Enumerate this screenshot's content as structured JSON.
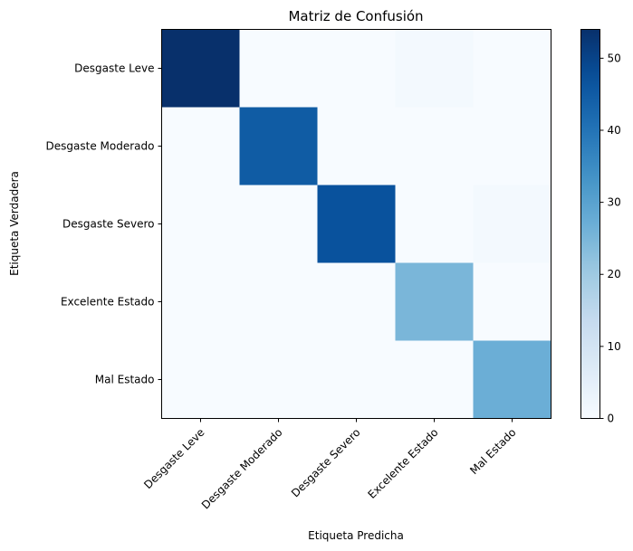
{
  "chart_data": {
    "type": "heatmap",
    "title": "Matriz de Confusión",
    "xlabel": "Etiqueta Predicha",
    "ylabel": "Etiqueta Verdadera",
    "x_categories": [
      "Desgaste Leve",
      "Desgaste Moderado",
      "Desgaste Severo",
      "Excelente Estado",
      "Mal Estado"
    ],
    "y_categories": [
      "Desgaste Leve",
      "Desgaste Moderado",
      "Desgaste Severo",
      "Excelente Estado",
      "Mal Estado"
    ],
    "matrix": [
      [
        54,
        0,
        0,
        1,
        0
      ],
      [
        0,
        45,
        0,
        0,
        0
      ],
      [
        0,
        0,
        47,
        0,
        1
      ],
      [
        0,
        0,
        0,
        25,
        0
      ],
      [
        0,
        0,
        0,
        0,
        27
      ]
    ],
    "colormap": "Blues",
    "colorbar": {
      "min": 0,
      "max": 54,
      "ticks": [
        0,
        10,
        20,
        30,
        40,
        50
      ]
    },
    "grid": false
  }
}
